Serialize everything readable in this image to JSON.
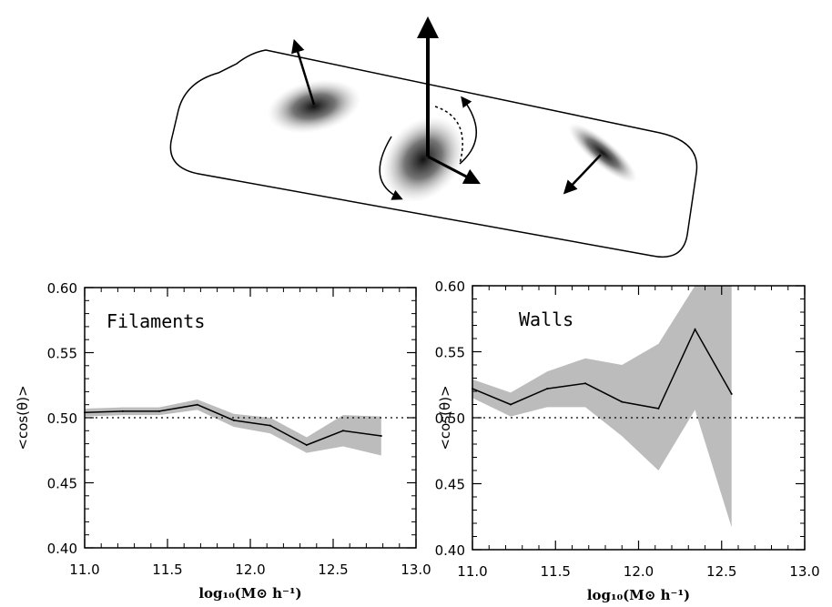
{
  "chart_data": [
    {
      "type": "line",
      "title": "Filaments",
      "xlabel": "log₁₀(M⊙ h⁻¹)",
      "ylabel": "<cos(θ)>",
      "xlim": [
        11.0,
        13.0
      ],
      "ylim": [
        0.4,
        0.6
      ],
      "xticks": [
        "11.0",
        "11.5",
        "12.0",
        "12.5",
        "13.0"
      ],
      "yticks": [
        "0.40",
        "0.45",
        "0.50",
        "0.55",
        "0.60"
      ],
      "reference_line": 0.5,
      "x": [
        11.0,
        11.23,
        11.45,
        11.68,
        11.9,
        12.12,
        12.34,
        12.56,
        12.79
      ],
      "y": [
        0.504,
        0.505,
        0.505,
        0.51,
        0.498,
        0.494,
        0.479,
        0.49,
        0.486
      ],
      "band_lower": [
        0.501,
        0.502,
        0.502,
        0.506,
        0.493,
        0.488,
        0.473,
        0.478,
        0.471
      ],
      "band_upper": [
        0.507,
        0.508,
        0.508,
        0.514,
        0.503,
        0.5,
        0.485,
        0.502,
        0.501
      ]
    },
    {
      "type": "line",
      "title": "Walls",
      "xlabel": "log₁₀(M⊙ h⁻¹)",
      "ylabel": "<cos(θ)>",
      "xlim": [
        11.0,
        13.0
      ],
      "ylim": [
        0.4,
        0.6
      ],
      "xticks": [
        "11.0",
        "11.5",
        "12.0",
        "12.5",
        "13.0"
      ],
      "yticks": [
        "0.40",
        "0.45",
        "0.50",
        "0.55",
        "0.60"
      ],
      "reference_line": 0.5,
      "x": [
        11.0,
        11.23,
        11.45,
        11.68,
        11.9,
        12.12,
        12.34,
        12.56
      ],
      "y": [
        0.522,
        0.51,
        0.522,
        0.526,
        0.512,
        0.507,
        0.567,
        0.518
      ],
      "band_lower": [
        0.515,
        0.501,
        0.508,
        0.508,
        0.486,
        0.46,
        0.506,
        0.417
      ],
      "band_upper": [
        0.529,
        0.519,
        0.535,
        0.545,
        0.54,
        0.556,
        0.628,
        0.62
      ]
    }
  ]
}
